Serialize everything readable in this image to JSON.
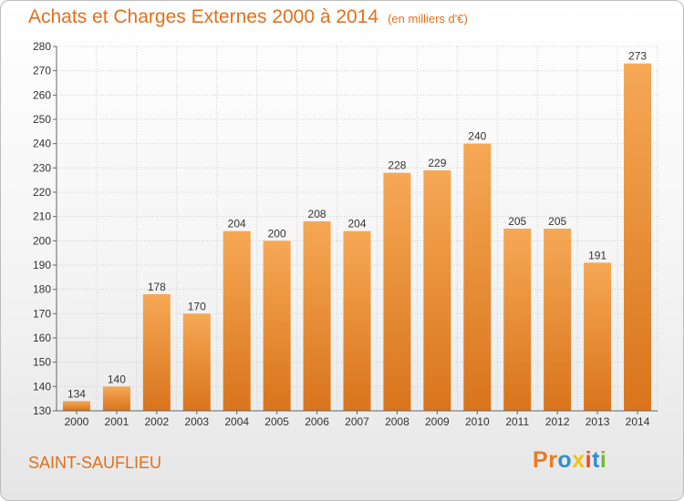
{
  "header": {
    "title": "Achats et Charges Externes 2000 à 2014",
    "unit": "(en milliers d'€)"
  },
  "footer": {
    "commune": "SAINT-SAUFLIEU",
    "logo": [
      {
        "char": "P",
        "color": "#e77b22"
      },
      {
        "char": "r",
        "color": "#e77b22"
      },
      {
        "char": "o",
        "color": "#2f8fd0"
      },
      {
        "char": "x",
        "color": "#f2c21b"
      },
      {
        "char": "i",
        "color": "#e44b2c"
      },
      {
        "char": "t",
        "color": "#2f8fd0"
      },
      {
        "char": "i",
        "color": "#7bb534"
      }
    ]
  },
  "colors": {
    "bar_light": "#f6a855",
    "bar_dark": "#d9741c",
    "grid": "#d0d0d0",
    "axis": "#666666"
  },
  "chart_data": {
    "type": "bar",
    "title": "Achats et Charges Externes 2000 à 2014",
    "categories": [
      "2000",
      "2001",
      "2002",
      "2003",
      "2004",
      "2005",
      "2006",
      "2007",
      "2008",
      "2009",
      "2010",
      "2011",
      "2012",
      "2013",
      "2014"
    ],
    "values": [
      134,
      140,
      178,
      170,
      204,
      200,
      208,
      204,
      228,
      229,
      240,
      205,
      205,
      191,
      273
    ],
    "ylim": [
      130,
      280
    ],
    "yticks": [
      130,
      140,
      150,
      160,
      170,
      180,
      190,
      200,
      210,
      220,
      230,
      240,
      250,
      260,
      270,
      280
    ],
    "grid": true,
    "xlabel": "",
    "ylabel": ""
  }
}
